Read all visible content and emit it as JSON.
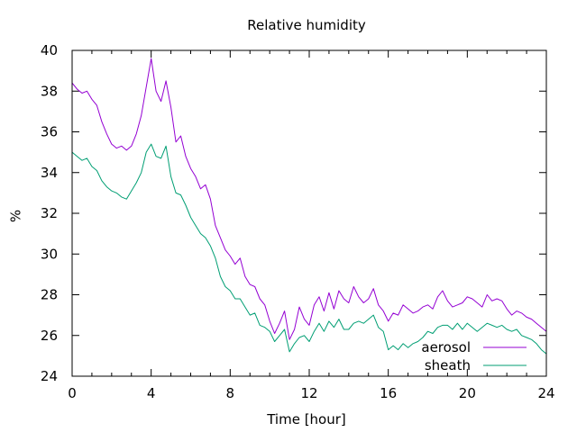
{
  "chart_data": {
    "type": "line",
    "title": "Relative humidity",
    "xlabel": "Time [hour]",
    "ylabel": "%",
    "xlim": [
      0,
      24
    ],
    "ylim": [
      24,
      40
    ],
    "x_ticks": [
      0,
      4,
      8,
      12,
      16,
      20,
      24
    ],
    "y_ticks": [
      24,
      26,
      28,
      30,
      32,
      34,
      36,
      38,
      40
    ],
    "legend_position": "bottom-right",
    "grid": false,
    "series": [
      {
        "name": "aerosol",
        "color": "#9400d3",
        "x": [
          0,
          0.25,
          0.5,
          0.75,
          1,
          1.25,
          1.5,
          1.75,
          2,
          2.25,
          2.5,
          2.75,
          3,
          3.25,
          3.5,
          3.75,
          4,
          4.25,
          4.5,
          4.75,
          5,
          5.25,
          5.5,
          5.75,
          6,
          6.25,
          6.5,
          6.75,
          7,
          7.25,
          7.5,
          7.75,
          8,
          8.25,
          8.5,
          8.75,
          9,
          9.25,
          9.5,
          9.75,
          10,
          10.25,
          10.5,
          10.75,
          11,
          11.25,
          11.5,
          11.75,
          12,
          12.25,
          12.5,
          12.75,
          13,
          13.25,
          13.5,
          13.75,
          14,
          14.25,
          14.5,
          14.75,
          15,
          15.25,
          15.5,
          15.75,
          16,
          16.25,
          16.5,
          16.75,
          17,
          17.25,
          17.5,
          17.75,
          18,
          18.25,
          18.5,
          18.75,
          19,
          19.25,
          19.5,
          19.75,
          20,
          20.25,
          20.5,
          20.75,
          21,
          21.25,
          21.5,
          21.75,
          22,
          22.25,
          22.5,
          22.75,
          23,
          23.25,
          23.5,
          23.75,
          24
        ],
        "y": [
          38.4,
          38.1,
          37.9,
          38.0,
          37.6,
          37.3,
          36.5,
          35.9,
          35.4,
          35.2,
          35.3,
          35.1,
          35.3,
          35.9,
          36.8,
          38.2,
          39.6,
          38.0,
          37.5,
          38.5,
          37.2,
          35.5,
          35.8,
          34.8,
          34.2,
          33.8,
          33.2,
          33.4,
          32.7,
          31.4,
          30.8,
          30.2,
          29.9,
          29.5,
          29.8,
          28.9,
          28.5,
          28.4,
          27.8,
          27.5,
          26.7,
          26.1,
          26.6,
          27.2,
          25.8,
          26.3,
          27.4,
          26.8,
          26.5,
          27.5,
          27.9,
          27.2,
          28.1,
          27.3,
          28.2,
          27.8,
          27.6,
          28.4,
          27.9,
          27.6,
          27.8,
          28.3,
          27.5,
          27.2,
          26.7,
          27.1,
          27.0,
          27.5,
          27.3,
          27.1,
          27.2,
          27.4,
          27.5,
          27.3,
          27.9,
          28.2,
          27.7,
          27.4,
          27.5,
          27.6,
          27.9,
          27.8,
          27.6,
          27.4,
          28.0,
          27.7,
          27.8,
          27.7,
          27.3,
          27.0,
          27.2,
          27.1,
          26.9,
          26.8,
          26.6,
          26.4,
          26.2
        ]
      },
      {
        "name": "sheath",
        "color": "#009e73",
        "x": [
          0,
          0.25,
          0.5,
          0.75,
          1,
          1.25,
          1.5,
          1.75,
          2,
          2.25,
          2.5,
          2.75,
          3,
          3.25,
          3.5,
          3.75,
          4,
          4.25,
          4.5,
          4.75,
          5,
          5.25,
          5.5,
          5.75,
          6,
          6.25,
          6.5,
          6.75,
          7,
          7.25,
          7.5,
          7.75,
          8,
          8.25,
          8.5,
          8.75,
          9,
          9.25,
          9.5,
          9.75,
          10,
          10.25,
          10.5,
          10.75,
          11,
          11.25,
          11.5,
          11.75,
          12,
          12.25,
          12.5,
          12.75,
          13,
          13.25,
          13.5,
          13.75,
          14,
          14.25,
          14.5,
          14.75,
          15,
          15.25,
          15.5,
          15.75,
          16,
          16.25,
          16.5,
          16.75,
          17,
          17.25,
          17.5,
          17.75,
          18,
          18.25,
          18.5,
          18.75,
          19,
          19.25,
          19.5,
          19.75,
          20,
          20.25,
          20.5,
          20.75,
          21,
          21.25,
          21.5,
          21.75,
          22,
          22.25,
          22.5,
          22.75,
          23,
          23.25,
          23.5,
          23.75,
          24
        ],
        "y": [
          35.0,
          34.8,
          34.6,
          34.7,
          34.3,
          34.1,
          33.6,
          33.3,
          33.1,
          33.0,
          32.8,
          32.7,
          33.1,
          33.5,
          34.0,
          35.0,
          35.4,
          34.8,
          34.7,
          35.3,
          33.8,
          33.0,
          32.9,
          32.4,
          31.8,
          31.4,
          31.0,
          30.8,
          30.4,
          29.8,
          28.9,
          28.4,
          28.2,
          27.8,
          27.8,
          27.4,
          27.0,
          27.1,
          26.5,
          26.4,
          26.2,
          25.7,
          26.0,
          26.3,
          25.2,
          25.6,
          25.9,
          26.0,
          25.7,
          26.2,
          26.6,
          26.2,
          26.7,
          26.4,
          26.8,
          26.3,
          26.3,
          26.6,
          26.7,
          26.6,
          26.8,
          27.0,
          26.4,
          26.2,
          25.3,
          25.5,
          25.3,
          25.6,
          25.4,
          25.6,
          25.7,
          25.9,
          26.2,
          26.1,
          26.4,
          26.5,
          26.5,
          26.3,
          26.6,
          26.3,
          26.6,
          26.4,
          26.2,
          26.4,
          26.6,
          26.5,
          26.4,
          26.5,
          26.3,
          26.2,
          26.3,
          26.0,
          25.9,
          25.8,
          25.6,
          25.3,
          25.1
        ]
      }
    ]
  }
}
